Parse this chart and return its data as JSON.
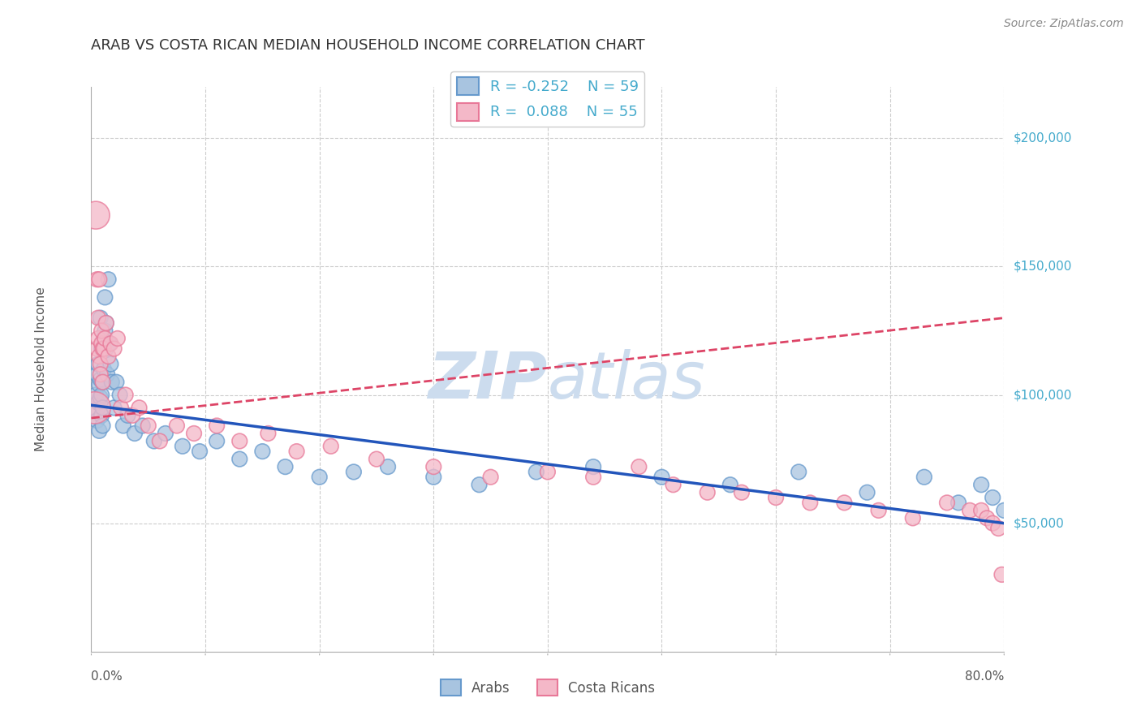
{
  "title": "ARAB VS COSTA RICAN MEDIAN HOUSEHOLD INCOME CORRELATION CHART",
  "source": "Source: ZipAtlas.com",
  "ylabel": "Median Household Income",
  "ylim": [
    0,
    220000
  ],
  "xlim": [
    0.0,
    0.8
  ],
  "arab_color": "#a8c4e0",
  "arab_edge_color": "#6699cc",
  "cr_color": "#f4b8c8",
  "cr_edge_color": "#e87898",
  "arab_line_color": "#2255bb",
  "cr_line_color": "#dd4466",
  "grid_color": "#cccccc",
  "watermark_color": "#ccdcee",
  "background_color": "#ffffff",
  "title_color": "#333333",
  "axis_label_color": "#555555",
  "ytick_color": "#44aacc",
  "arab_scatter_x": [
    0.003,
    0.004,
    0.005,
    0.005,
    0.006,
    0.006,
    0.007,
    0.007,
    0.008,
    0.008,
    0.008,
    0.009,
    0.009,
    0.009,
    0.01,
    0.01,
    0.01,
    0.011,
    0.011,
    0.012,
    0.012,
    0.013,
    0.013,
    0.014,
    0.015,
    0.016,
    0.017,
    0.018,
    0.02,
    0.022,
    0.025,
    0.028,
    0.032,
    0.038,
    0.045,
    0.055,
    0.065,
    0.08,
    0.095,
    0.11,
    0.13,
    0.15,
    0.17,
    0.2,
    0.23,
    0.26,
    0.3,
    0.34,
    0.39,
    0.44,
    0.5,
    0.56,
    0.62,
    0.68,
    0.73,
    0.76,
    0.78,
    0.79,
    0.8
  ],
  "arab_scatter_y": [
    95000,
    100000,
    90000,
    108000,
    97000,
    112000,
    86000,
    104000,
    99000,
    106000,
    130000,
    92000,
    100000,
    118000,
    95000,
    105000,
    88000,
    110000,
    122000,
    125000,
    138000,
    128000,
    118000,
    108000,
    145000,
    120000,
    112000,
    105000,
    95000,
    105000,
    100000,
    88000,
    92000,
    85000,
    88000,
    82000,
    85000,
    80000,
    78000,
    82000,
    75000,
    78000,
    72000,
    68000,
    70000,
    72000,
    68000,
    65000,
    70000,
    72000,
    68000,
    65000,
    70000,
    62000,
    68000,
    58000,
    65000,
    60000,
    55000
  ],
  "cr_scatter_x": [
    0.003,
    0.004,
    0.005,
    0.005,
    0.006,
    0.006,
    0.007,
    0.007,
    0.008,
    0.008,
    0.009,
    0.009,
    0.01,
    0.01,
    0.011,
    0.012,
    0.013,
    0.015,
    0.017,
    0.02,
    0.023,
    0.026,
    0.03,
    0.036,
    0.042,
    0.05,
    0.06,
    0.075,
    0.09,
    0.11,
    0.13,
    0.155,
    0.18,
    0.21,
    0.25,
    0.3,
    0.35,
    0.4,
    0.44,
    0.48,
    0.51,
    0.54,
    0.57,
    0.6,
    0.63,
    0.66,
    0.69,
    0.72,
    0.75,
    0.77,
    0.78,
    0.785,
    0.79,
    0.795,
    0.798
  ],
  "cr_scatter_y": [
    95000,
    170000,
    145000,
    118000,
    130000,
    122000,
    145000,
    115000,
    112000,
    108000,
    120000,
    125000,
    118000,
    105000,
    118000,
    122000,
    128000,
    115000,
    120000,
    118000,
    122000,
    95000,
    100000,
    92000,
    95000,
    88000,
    82000,
    88000,
    85000,
    88000,
    82000,
    85000,
    78000,
    80000,
    75000,
    72000,
    68000,
    70000,
    68000,
    72000,
    65000,
    62000,
    62000,
    60000,
    58000,
    58000,
    55000,
    52000,
    58000,
    55000,
    55000,
    52000,
    50000,
    48000,
    30000
  ],
  "arab_line_x0": 0.0,
  "arab_line_x1": 0.8,
  "arab_line_y0": 96000,
  "arab_line_y1": 50000,
  "cr_line_x0": 0.0,
  "cr_line_x1": 0.8,
  "cr_line_y0": 91000,
  "cr_line_y1": 130000
}
